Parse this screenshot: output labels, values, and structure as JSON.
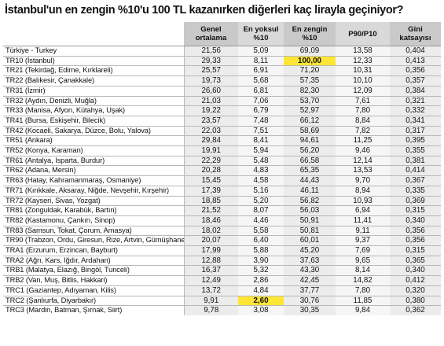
{
  "title": "İstanbul'un en zengin %10'u 100 TL kazanırken diğerleri kaç lirayla geçiniyor?",
  "headers": {
    "region": "",
    "mean": [
      "Genel",
      "ortalama"
    ],
    "bottom10": [
      "En yoksul",
      "%10"
    ],
    "top10": [
      "En zengin",
      "%10"
    ],
    "ratio": [
      "P90/P10",
      ""
    ],
    "gini": [
      "Gini",
      "katsayısı"
    ]
  },
  "highlight_color": "#ffe634",
  "rows": [
    {
      "region": "Türkiye - Turkey",
      "mean": "21,56",
      "bottom10": "5,09",
      "top10": "69,09",
      "ratio": "13,58",
      "gini": "0,404"
    },
    {
      "region": "TR10 (İstanbul)",
      "mean": "29,33",
      "bottom10": "8,11",
      "top10": "100,00",
      "ratio": "12,33",
      "gini": "0,413",
      "highlight": "top10"
    },
    {
      "region": "TR21 (Tekirdağ, Edirne, Kırklareli)",
      "mean": "25,57",
      "bottom10": "6,91",
      "top10": "71,20",
      "ratio": "10,31",
      "gini": "0,356"
    },
    {
      "region": "TR22 (Balıkesir, Çanakkale)",
      "mean": "19,73",
      "bottom10": "5,68",
      "top10": "57,35",
      "ratio": "10,10",
      "gini": "0,357"
    },
    {
      "region": "TR31 (İzmir)",
      "mean": "26,60",
      "bottom10": "6,81",
      "top10": "82,30",
      "ratio": "12,09",
      "gini": "0,384"
    },
    {
      "region": "TR32 (Aydın, Denizli, Muğla)",
      "mean": "21,03",
      "bottom10": "7,06",
      "top10": "53,70",
      "ratio": "7,61",
      "gini": "0,321"
    },
    {
      "region": "TR33 (Manisa, Afyon, Kütahya, Uşak)",
      "mean": "19,22",
      "bottom10": "6,79",
      "top10": "52,97",
      "ratio": "7,80",
      "gini": "0,332"
    },
    {
      "region": "TR41 (Bursa, Eskişehir, Bilecik)",
      "mean": "23,57",
      "bottom10": "7,48",
      "top10": "66,12",
      "ratio": "8,84",
      "gini": "0,341"
    },
    {
      "region": "TR42 (Kocaeli, Sakarya, Düzce, Bolu, Yalova)",
      "mean": "22,03",
      "bottom10": "7,51",
      "top10": "58,69",
      "ratio": "7,82",
      "gini": "0,317"
    },
    {
      "region": "TR51 (Ankara)",
      "mean": "29,84",
      "bottom10": "8,41",
      "top10": "94,61",
      "ratio": "11,25",
      "gini": "0,395"
    },
    {
      "region": "TR52 (Konya, Karaman)",
      "mean": "19,91",
      "bottom10": "5,94",
      "top10": "56,20",
      "ratio": "9,46",
      "gini": "0,355"
    },
    {
      "region": "TR61 (Antalya, Isparta, Burdur)",
      "mean": "22,29",
      "bottom10": "5,48",
      "top10": "66,58",
      "ratio": "12,14",
      "gini": "0,381"
    },
    {
      "region": "TR62 (Adana, Mersin)",
      "mean": "20,28",
      "bottom10": "4,83",
      "top10": "65,35",
      "ratio": "13,53",
      "gini": "0,414"
    },
    {
      "region": "TR63 (Hatay, Kahramanmaraş, Osmaniye)",
      "mean": "15,45",
      "bottom10": "4,58",
      "top10": "44,43",
      "ratio": "9,70",
      "gini": "0,367"
    },
    {
      "region": "TR71 (Kırıkkale, Aksaray, Niğde, Nevşehir, Kırşehir)",
      "mean": "17,39",
      "bottom10": "5,16",
      "top10": "46,11",
      "ratio": "8,94",
      "gini": "0,335"
    },
    {
      "region": "TR72 (Kayseri, Sivas, Yozgat)",
      "mean": "18,85",
      "bottom10": "5,20",
      "top10": "56,82",
      "ratio": "10,93",
      "gini": "0,369"
    },
    {
      "region": "TR81 (Zonguldak, Karabük, Bartın)",
      "mean": "21,52",
      "bottom10": "8,07",
      "top10": "56,03",
      "ratio": "6,94",
      "gini": "0,315"
    },
    {
      "region": "TR82 (Kastamonu, Çankırı, Sinop)",
      "mean": "18,46",
      "bottom10": "4,46",
      "top10": "50,91",
      "ratio": "11,41",
      "gini": "0,340"
    },
    {
      "region": "TR83 (Samsun, Tokat, Çorum, Amasya)",
      "mean": "18,02",
      "bottom10": "5,58",
      "top10": "50,81",
      "ratio": "9,11",
      "gini": "0,356"
    },
    {
      "region": "TR90 (Trabzon, Ordu, Giresun, Rize, Artvin, Gümüşhane)",
      "mean": "20,07",
      "bottom10": "6,40",
      "top10": "60,01",
      "ratio": "9,37",
      "gini": "0,356"
    },
    {
      "region": "TRA1 (Erzurum, Erzincan, Bayburt)",
      "mean": "17,99",
      "bottom10": "5,88",
      "top10": "45,20",
      "ratio": "7,69",
      "gini": "0,315"
    },
    {
      "region": "TRA2 (Ağrı, Kars, Iğdır, Ardahan)",
      "mean": "12,88",
      "bottom10": "3,90",
      "top10": "37,63",
      "ratio": "9,65",
      "gini": "0,365"
    },
    {
      "region": "TRB1 (Malatya, Elazığ, Bingöl, Tunceli)",
      "mean": "16,37",
      "bottom10": "5,32",
      "top10": "43,30",
      "ratio": "8,14",
      "gini": "0,340"
    },
    {
      "region": "TRB2 (Van, Muş, Bitlis, Hakkari)",
      "mean": "12,49",
      "bottom10": "2,86",
      "top10": "42,45",
      "ratio": "14,82",
      "gini": "0,412"
    },
    {
      "region": "TRC1 (Gaziantep, Adıyaman, Kilis)",
      "mean": "13,72",
      "bottom10": "4,84",
      "top10": "37,77",
      "ratio": "7,80",
      "gini": "0,320"
    },
    {
      "region": "TRC2 (Şanlıurfa, Diyarbakır)",
      "mean": "9,91",
      "bottom10": "2,60",
      "top10": "30,76",
      "ratio": "11,85",
      "gini": "0,380",
      "highlight": "bottom10"
    },
    {
      "region": "TRC3 (Mardin, Batman, Şırnak, Siirt)",
      "mean": "9,78",
      "bottom10": "3,08",
      "top10": "30,35",
      "ratio": "9,84",
      "gini": "0,362"
    }
  ]
}
